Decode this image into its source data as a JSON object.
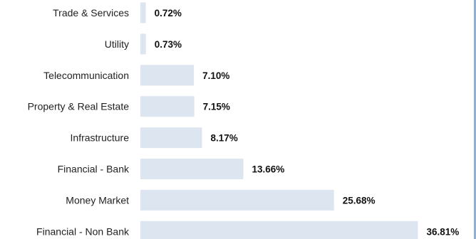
{
  "chart_data": {
    "type": "bar",
    "orientation": "horizontal",
    "categories": [
      "Trade & Services",
      "Utility",
      "Telecommunication",
      "Property & Real Estate",
      "Infrastructure",
      "Financial - Bank",
      "Money Market",
      "Financial - Non Bank"
    ],
    "values": [
      0.72,
      0.73,
      7.1,
      7.15,
      8.17,
      13.66,
      25.68,
      36.81
    ],
    "value_labels": [
      "0.72%",
      "0.73%",
      "7.10%",
      "7.15%",
      "8.17%",
      "13.66%",
      "25.68%",
      "36.81%"
    ],
    "xlim": [
      0,
      40
    ],
    "grid": false,
    "legend": "none",
    "title": "",
    "xlabel": "",
    "ylabel": "",
    "colors": {
      "bar": "#dde5f1",
      "frame": "#8fb0d0"
    }
  }
}
